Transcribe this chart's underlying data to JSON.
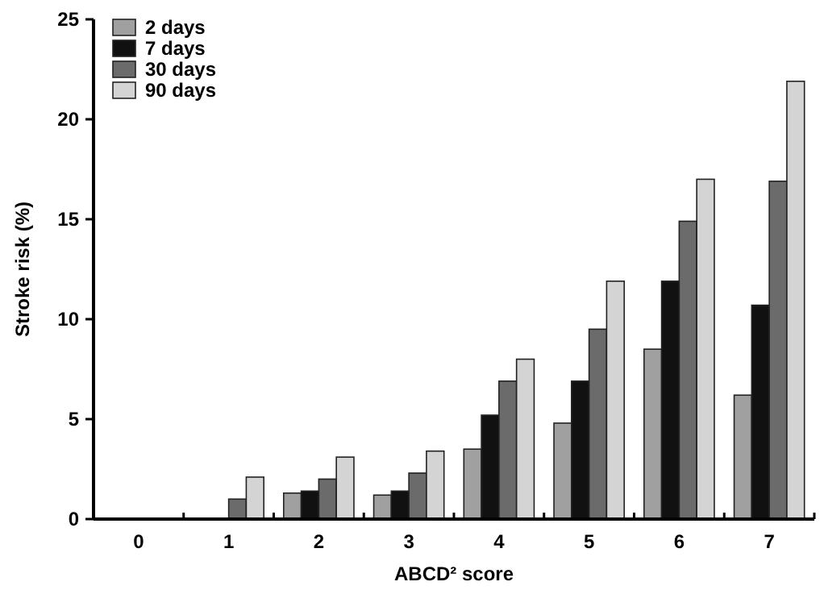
{
  "chart_data": {
    "type": "bar",
    "xlabel": "ABCD² score",
    "ylabel": "Stroke risk (%)",
    "categories": [
      "0",
      "1",
      "2",
      "3",
      "4",
      "5",
      "6",
      "7"
    ],
    "series": [
      {
        "name": "2 days",
        "color": "#a0a0a0",
        "values": [
          0,
          0,
          1.3,
          1.2,
          3.5,
          4.8,
          8.5,
          6.2
        ]
      },
      {
        "name": "7 days",
        "color": "#111111",
        "values": [
          0,
          0,
          1.4,
          1.4,
          5.2,
          6.9,
          11.9,
          10.7
        ]
      },
      {
        "name": "30 days",
        "color": "#6b6b6b",
        "values": [
          0,
          1.0,
          2.0,
          2.3,
          6.9,
          9.5,
          14.9,
          16.9
        ]
      },
      {
        "name": "90 days",
        "color": "#d4d4d4",
        "values": [
          0,
          2.1,
          3.1,
          3.4,
          8.0,
          11.9,
          17.0,
          21.9
        ]
      }
    ],
    "ylim": [
      0,
      25
    ],
    "yticks": [
      0,
      5,
      10,
      15,
      20,
      25
    ],
    "grid": false,
    "legend": "top left"
  }
}
